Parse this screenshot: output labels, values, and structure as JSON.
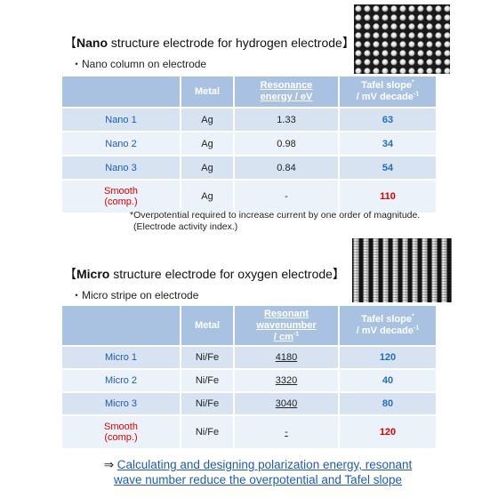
{
  "nano": {
    "title_bold": "Nano",
    "title_rest": " structure electrode for hydrogen electrode",
    "subtitle": "・Nano column on electrode",
    "headers": {
      "metal": "Metal",
      "res_l1": "Resonance",
      "res_l2": "energy / eV",
      "tafel_l1": "Tafel slope",
      "tafel_sup1": "*",
      "tafel_l2": "/ mV decade",
      "tafel_sup2": "-1"
    },
    "rows": [
      {
        "name": "Nano 1",
        "metal": "Ag",
        "res": "1.33",
        "tafel": "63"
      },
      {
        "name": "Nano 2",
        "metal": "Ag",
        "res": "0.98",
        "tafel": "34"
      },
      {
        "name": "Nano 3",
        "metal": "Ag",
        "res": "0.84",
        "tafel": "54"
      },
      {
        "name_l1": "Smooth",
        "name_l2": "(comp.)",
        "metal": "Ag",
        "res": "-",
        "tafel": "110"
      }
    ],
    "footnote_l1": "*Overpotential required to increase current by one order of magnitude.",
    "footnote_l2": "(Electrode activity index.)"
  },
  "micro": {
    "title_bold": "Micro",
    "title_rest": " structure electrode for oxygen electrode",
    "subtitle": "・Micro stripe on electrode",
    "headers": {
      "metal": "Metal",
      "res_l1": "Resonant",
      "res_l2": "wavenumber",
      "res_l3": "/ cm",
      "res_sup": "-1",
      "tafel_l1": "Tafel slope",
      "tafel_sup1": "*",
      "tafel_l2": "/ mV decade",
      "tafel_sup2": "-1"
    },
    "rows": [
      {
        "name": "Micro 1",
        "metal": "Ni/Fe",
        "res": "4180",
        "tafel": "120"
      },
      {
        "name": "Micro 2",
        "metal": "Ni/Fe",
        "res": "3320",
        "tafel": "40"
      },
      {
        "name": "Micro 3",
        "metal": "Ni/Fe",
        "res": "3040",
        "tafel": "80"
      },
      {
        "name_l1": "Smooth",
        "name_l2": "(comp.)",
        "metal": "Ni/Fe",
        "res": "-",
        "tafel": "120"
      }
    ]
  },
  "bracket_open": "【",
  "bracket_close": "】",
  "conclusion": {
    "arrow": "⇒ ",
    "line1": "Calculating and designing polarization energy, resonant",
    "line2": "wave number reduce the overpotential and Tafel slope"
  },
  "colors": {
    "header_bg": "#a9c2e2",
    "row_dark": "#d7e3f1",
    "row_light": "#ecf2f9",
    "accent_blue": "#1f5bb5",
    "comparison_red": "#e00000"
  }
}
